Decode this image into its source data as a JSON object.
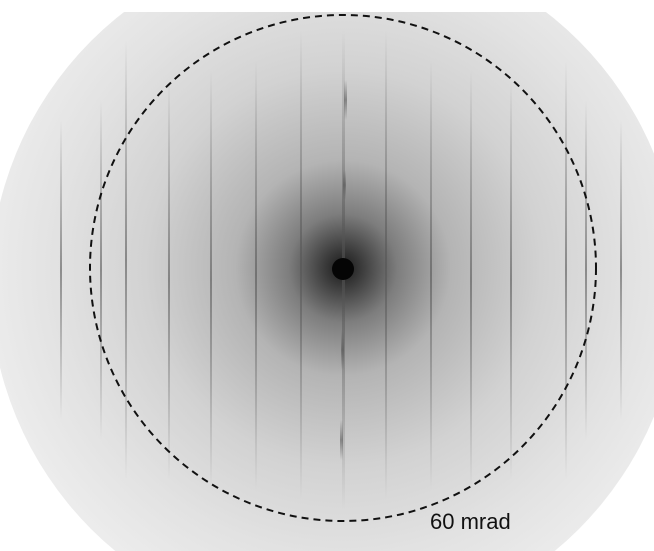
{
  "scale_label": "60 mrad"
}
